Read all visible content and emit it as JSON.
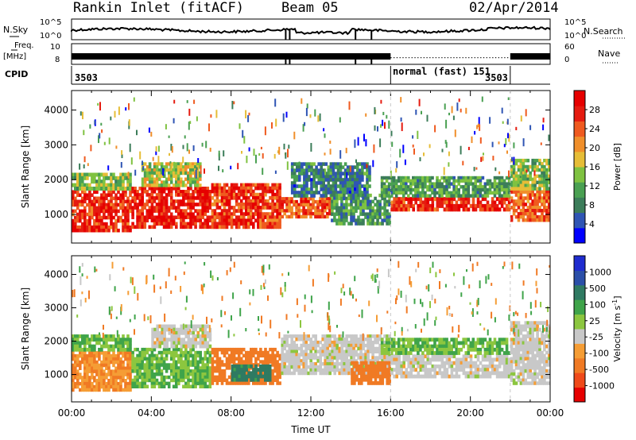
{
  "header": {
    "station": "Rankin Inlet (fitACF)",
    "beam": "Beam 05",
    "date": "02/Apr/2014"
  },
  "top_panels": {
    "nsky_label": "N.Sky",
    "nsky_ticks": [
      "10^5",
      "10^0"
    ],
    "nsearch_label": "N.Search",
    "nsearch_ticks": [
      "10^5",
      "10^0"
    ],
    "freq_label": "Freq.",
    "freq_unit": "[MHz]",
    "freq_ticks": [
      "10",
      "8"
    ],
    "nave_label": "Nave",
    "nave_ticks": [
      "60",
      "0"
    ],
    "cpid_label": "CPID",
    "cpid_segments": [
      {
        "text": "3503",
        "start": 0.0,
        "end": 16.0
      },
      {
        "text": "normal (fast) 151",
        "start": 16.0,
        "end": 22.0
      },
      {
        "text": "3503",
        "start": 22.0,
        "end": 24.0
      }
    ]
  },
  "colors": {
    "power_scale": [
      "#0000ff",
      "#2f55b4",
      "#3c7d5a",
      "#4aa052",
      "#7fc241",
      "#e6bd37",
      "#f08f2b",
      "#ef5a1f",
      "#e51b10",
      "#e60000"
    ],
    "velocity_scale": [
      "#e60000",
      "#ef4a1a",
      "#f07a24",
      "#f59d35",
      "#c8c8c8",
      "#8cc63f",
      "#3fa44a",
      "#2f7a62",
      "#2b4fa8",
      "#1f2ccf"
    ],
    "ground_scatter": "#c8c8c8"
  },
  "chart_data": [
    {
      "type": "heatmap",
      "name": "power",
      "xlabel": "",
      "ylabel": "Slant Range [km]",
      "xlim": [
        0,
        24
      ],
      "ylim": [
        180,
        4560
      ],
      "yticks": [
        "1000",
        "2000",
        "3000",
        "4000"
      ],
      "colorbar": {
        "label": "Power [dB]",
        "range": [
          0,
          32
        ],
        "ticks": [
          "4",
          "8",
          "12",
          "16",
          "20",
          "24",
          "28"
        ]
      },
      "scatter_bands": [
        {
          "t0": 0.0,
          "t1": 3.0,
          "r0": 500,
          "r1": 1700,
          "value": 27
        },
        {
          "t0": 0.0,
          "t1": 3.0,
          "r0": 1700,
          "r1": 2200,
          "value": 14
        },
        {
          "t0": 3.0,
          "t1": 7.0,
          "r0": 600,
          "r1": 1800,
          "value": 28
        },
        {
          "t0": 3.5,
          "t1": 6.5,
          "r0": 1800,
          "r1": 2500,
          "value": 16
        },
        {
          "t0": 7.0,
          "t1": 10.5,
          "r0": 600,
          "r1": 1900,
          "value": 26
        },
        {
          "t0": 10.5,
          "t1": 13.0,
          "r0": 900,
          "r1": 1500,
          "value": 25
        },
        {
          "t0": 11.0,
          "t1": 15.0,
          "r0": 1500,
          "r1": 2500,
          "value": 8
        },
        {
          "t0": 13.0,
          "t1": 16.0,
          "r0": 700,
          "r1": 1600,
          "value": 10
        },
        {
          "t0": 16.0,
          "t1": 22.0,
          "r0": 1100,
          "r1": 1500,
          "value": 27
        },
        {
          "t0": 15.5,
          "t1": 22.0,
          "r0": 1500,
          "r1": 2100,
          "value": 11
        },
        {
          "t0": 22.0,
          "t1": 24.0,
          "r0": 800,
          "r1": 1700,
          "value": 24
        },
        {
          "t0": 22.0,
          "t1": 24.0,
          "r0": 1700,
          "r1": 2600,
          "value": 14
        }
      ]
    },
    {
      "type": "heatmap",
      "name": "velocity",
      "xlabel": "Time UT",
      "ylabel": "Slant Range [km]",
      "xlim": [
        0,
        24
      ],
      "ylim": [
        180,
        4560
      ],
      "xticks": [
        "00:00",
        "04:00",
        "08:00",
        "12:00",
        "16:00",
        "20:00",
        "00:00"
      ],
      "yticks": [
        "1000",
        "2000",
        "3000",
        "4000"
      ],
      "colorbar": {
        "label": "Velocity [m s",
        "unit_exponent": "-1",
        "unit_close": "]",
        "ticks": [
          "1000",
          "500",
          "100",
          "25",
          "-25",
          "-100",
          "-500",
          "-1000"
        ]
      },
      "scatter_bands": [
        {
          "t0": 0.0,
          "t1": 3.0,
          "r0": 500,
          "r1": 1700,
          "value": -100
        },
        {
          "t0": 0.0,
          "t1": 3.0,
          "r0": 1700,
          "r1": 2200,
          "value": 100
        },
        {
          "t0": 3.0,
          "t1": 7.0,
          "r0": 600,
          "r1": 1800,
          "value": 100
        },
        {
          "t0": 4.0,
          "t1": 7.0,
          "r0": 1800,
          "r1": 2500,
          "value": 0
        },
        {
          "t0": 7.0,
          "t1": 10.5,
          "r0": 700,
          "r1": 1800,
          "value": -300
        },
        {
          "t0": 8.0,
          "t1": 10.0,
          "r0": 800,
          "r1": 1300,
          "value": 700
        },
        {
          "t0": 10.5,
          "t1": 16.0,
          "r0": 1000,
          "r1": 2200,
          "value": 0
        },
        {
          "t0": 14.0,
          "t1": 16.0,
          "r0": 700,
          "r1": 1400,
          "value": -200
        },
        {
          "t0": 16.0,
          "t1": 22.0,
          "r0": 900,
          "r1": 1600,
          "value": 0
        },
        {
          "t0": 15.5,
          "t1": 22.0,
          "r0": 1600,
          "r1": 2100,
          "value": 100
        },
        {
          "t0": 22.0,
          "t1": 24.0,
          "r0": 700,
          "r1": 1800,
          "value": 0
        },
        {
          "t0": 22.0,
          "t1": 24.0,
          "r0": 1800,
          "r1": 2600,
          "value": 0
        }
      ]
    }
  ]
}
